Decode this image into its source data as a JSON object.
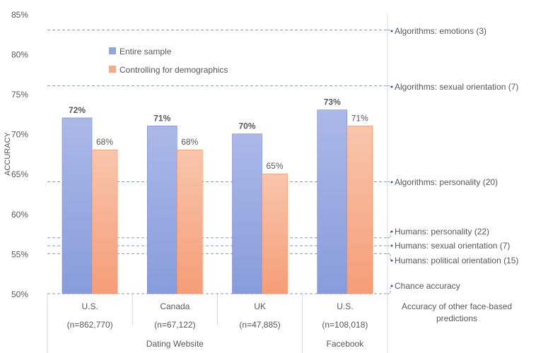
{
  "chart_data": {
    "type": "bar",
    "title": "",
    "ylabel": "ACCURACY",
    "xlabel": "",
    "ylim": [
      50,
      85
    ],
    "yticks": [
      "50%",
      "55%",
      "60%",
      "65%",
      "70%",
      "75%",
      "80%",
      "85%"
    ],
    "ytick_values": [
      50,
      55,
      60,
      65,
      70,
      75,
      80,
      85
    ],
    "categories": [
      {
        "name": "U.S.",
        "n": "(n=862,770)"
      },
      {
        "name": "Canada",
        "n": "(n=67,122)"
      },
      {
        "name": "UK",
        "n": "(n=47,885)"
      },
      {
        "name": "U.S.",
        "n": "(n=108,018)"
      }
    ],
    "groups": [
      {
        "label": "Dating Website",
        "span": [
          0,
          2
        ]
      },
      {
        "label": "Facebook",
        "span": [
          3,
          3
        ]
      }
    ],
    "series": [
      {
        "name": "Entire sample",
        "values": [
          72,
          71,
          70,
          73
        ],
        "labels": [
          "72%",
          "71%",
          "70%",
          "73%"
        ],
        "color": "#94a6de"
      },
      {
        "name": "Controlling for demographics",
        "values": [
          68,
          68,
          65,
          71
        ],
        "labels": [
          "68%",
          "68%",
          "65%",
          "71%"
        ],
        "color": "#f6aa87"
      }
    ],
    "legend_position": "top-left",
    "reference_lines": [
      {
        "label": "Algorithms: emotions (3)",
        "value": 83
      },
      {
        "label": "Algorithms: sexual orientation (7)",
        "value": 76
      },
      {
        "label": "Algorithms: personality (20)",
        "value": 64
      },
      {
        "label": "Humans: personality (22)",
        "value": 57
      },
      {
        "label": "Humans: sexual orientation (7)",
        "value": 56
      },
      {
        "label": "Humans: political orientation (15)",
        "value": 55
      },
      {
        "label": "Chance accuracy",
        "value": 50
      }
    ],
    "reference_caption": "Accuracy of other face-based predictions",
    "reference_color": "#7f9fbf"
  }
}
